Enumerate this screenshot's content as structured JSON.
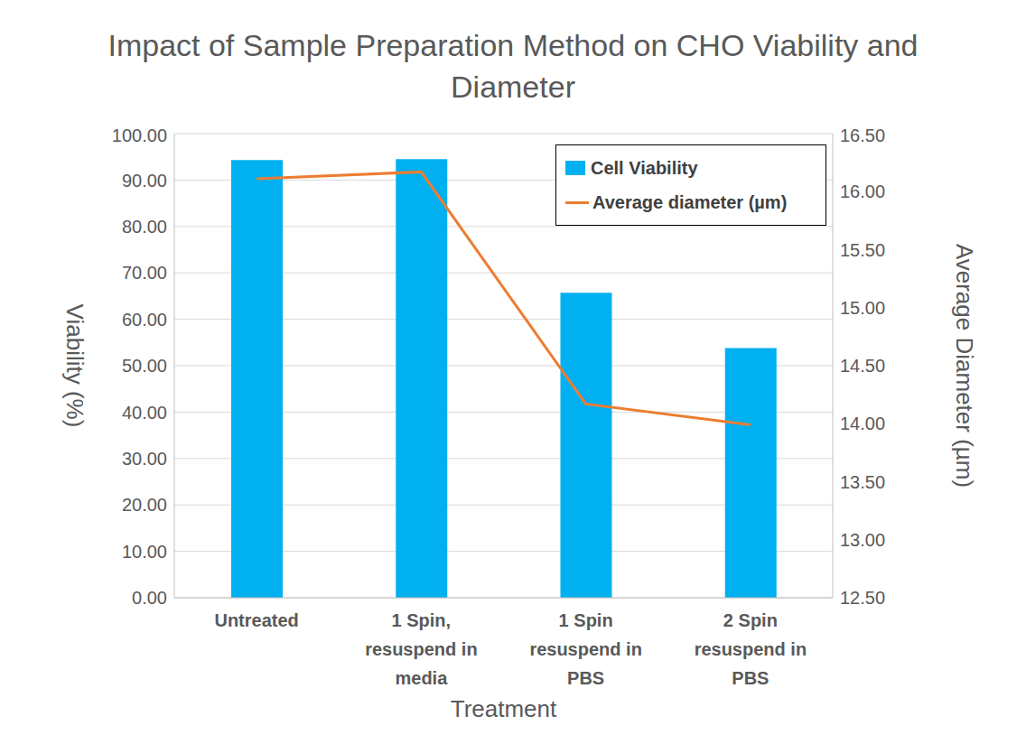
{
  "chart_data": {
    "type": "bar",
    "title": "Impact of Sample Preparation Method on CHO Viability and Diameter",
    "x_label": "Treatment",
    "y_label": "Viability (%)",
    "y2_label": "Average Diameter (µm)",
    "categories": [
      "Untreated",
      "1 Spin, resuspend in media",
      "1 Spin resuspend in PBS",
      "2 Spin resuspend in PBS"
    ],
    "series": [
      {
        "name": "Cell Viability",
        "type": "bar",
        "color": "#00b0f0",
        "values": [
          94.3,
          94.5,
          65.7,
          53.8
        ]
      },
      {
        "name": "Average diameter (µm)",
        "type": "line",
        "color": "#ed7d31",
        "axis": "y2",
        "values": [
          16.11,
          16.17,
          14.17,
          13.99
        ]
      }
    ],
    "ylim": [
      0,
      100
    ],
    "yticks": [
      {
        "value": 0,
        "label": "0.00"
      },
      {
        "value": 10,
        "label": "10.00"
      },
      {
        "value": 20,
        "label": "20.00"
      },
      {
        "value": 30,
        "label": "30.00"
      },
      {
        "value": 40,
        "label": "40.00"
      },
      {
        "value": 50,
        "label": "50.00"
      },
      {
        "value": 60,
        "label": "60.00"
      },
      {
        "value": 70,
        "label": "70.00"
      },
      {
        "value": 80,
        "label": "80.00"
      },
      {
        "value": 90,
        "label": "90.00"
      },
      {
        "value": 100,
        "label": "100.00"
      }
    ],
    "y2lim": [
      12.5,
      16.5
    ],
    "y2ticks": [
      {
        "value": 12.5,
        "label": "12.50"
      },
      {
        "value": 13,
        "label": "13.00"
      },
      {
        "value": 13.5,
        "label": "13.50"
      },
      {
        "value": 14,
        "label": "14.00"
      },
      {
        "value": 14.5,
        "label": "14.50"
      },
      {
        "value": 15,
        "label": "15.00"
      },
      {
        "value": 15.5,
        "label": "15.50"
      },
      {
        "value": 16,
        "label": "16.00"
      },
      {
        "value": 16.5,
        "label": "16.50"
      }
    ],
    "grid": true,
    "legend": "top right"
  }
}
